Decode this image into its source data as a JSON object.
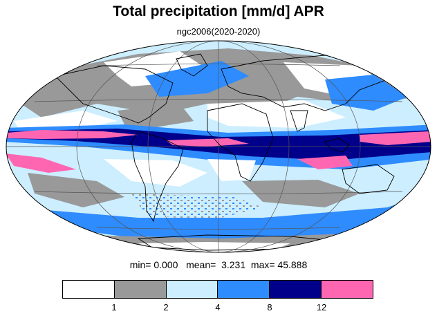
{
  "title": "Total precipitation [mm/d] APR",
  "subtitle": "ngc2006(2020-2020)",
  "stats": {
    "min_label": "min=",
    "min_value": "0.000",
    "mean_label": "mean=",
    "mean_value": "3.231",
    "max_label": "max=",
    "max_value": "45.888"
  },
  "legend": {
    "colors": [
      "#ffffff",
      "#999999",
      "#cceeff",
      "#2e8cff",
      "#00008b",
      "#ff66b2"
    ],
    "tick_labels": [
      "1",
      "2",
      "4",
      "8",
      "12"
    ]
  },
  "map": {
    "projection": "Mollweide",
    "land_outline_color": "#000000",
    "grid_color": "#555555"
  }
}
